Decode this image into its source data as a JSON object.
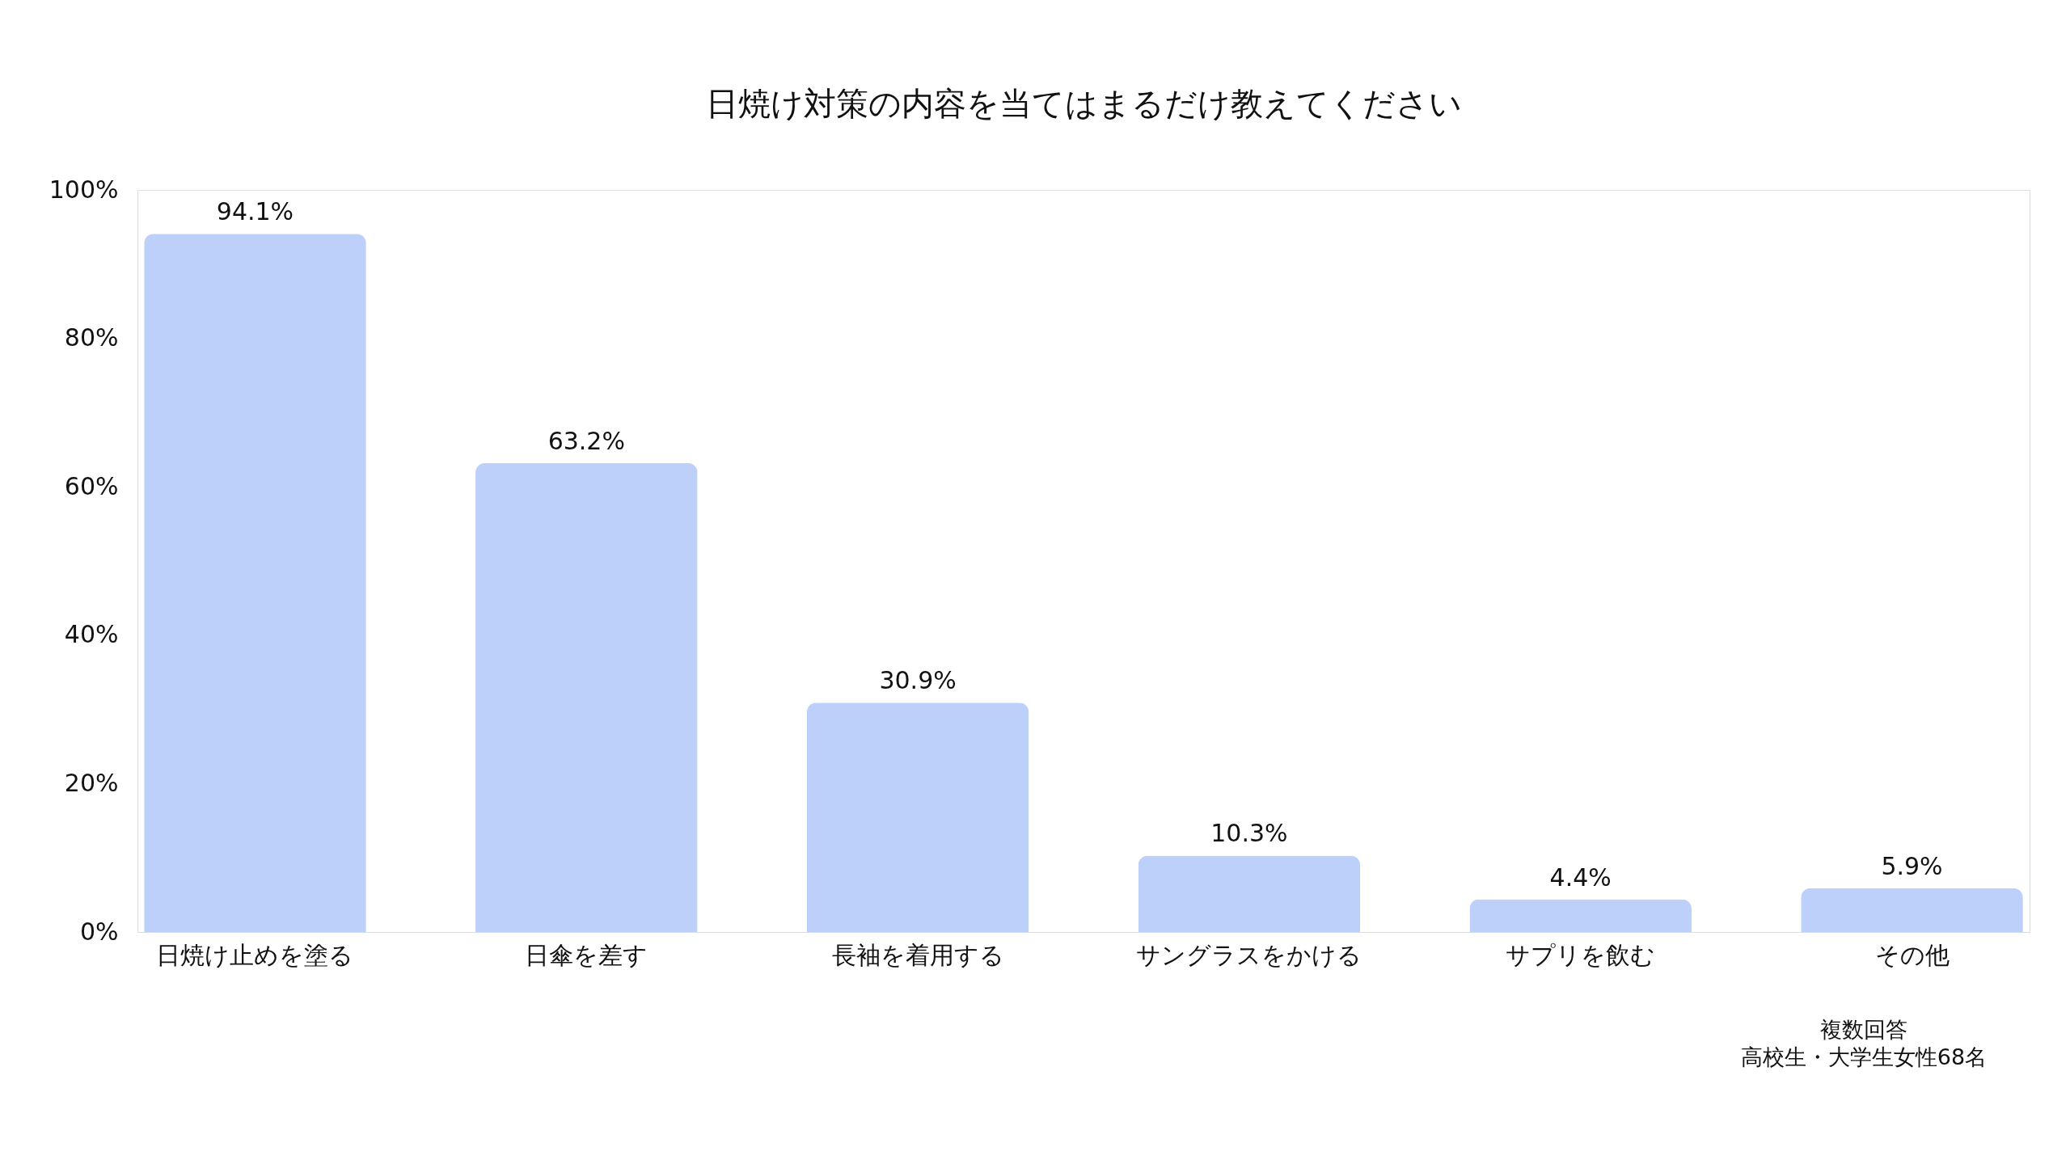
{
  "chart_data": {
    "type": "bar",
    "title": "日焼け対策の内容を当てはまるだけ教えてください",
    "categories": [
      "日焼け止めを塗る",
      "日傘を差す",
      "長袖を着用する",
      "サングラスをかける",
      "サプリを飲む",
      "その他"
    ],
    "values": [
      94.1,
      63.2,
      30.9,
      10.3,
      4.4,
      5.9
    ],
    "value_labels": [
      "94.1%",
      "63.2%",
      "30.9%",
      "10.3%",
      "4.4%",
      "5.9%"
    ],
    "color": "#bdd0fa",
    "ylim": [
      0,
      100
    ],
    "yticks": [
      {
        "value": 0,
        "label": "0%"
      },
      {
        "value": 20,
        "label": "20%"
      },
      {
        "value": 40,
        "label": "40%"
      },
      {
        "value": 60,
        "label": "60%"
      },
      {
        "value": 80,
        "label": "80%"
      },
      {
        "value": 100,
        "label": "100%"
      }
    ],
    "grid": false,
    "annotations": [
      "複数回答",
      "高校生・大学生女性68名"
    ]
  }
}
